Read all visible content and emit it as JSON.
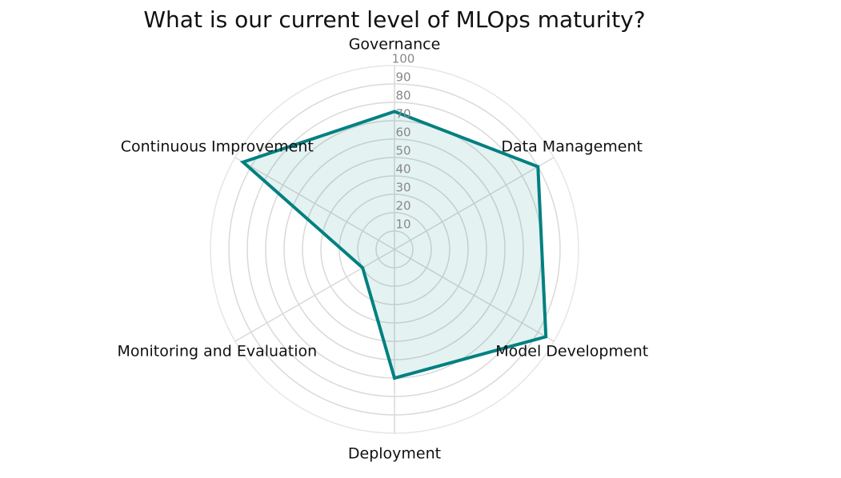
{
  "chart_data": {
    "type": "radar",
    "title": "What is our current level of MLOps maturity?",
    "categories": [
      "Governance",
      "Data Management",
      "Model Development",
      "Deployment",
      "Monitoring and Evaluation",
      "Continuous Improvement"
    ],
    "values": [
      75,
      90,
      95,
      70,
      20,
      95
    ],
    "color": "#008080",
    "rlim": [
      0,
      100
    ],
    "rticks": [
      10,
      20,
      30,
      40,
      50,
      60,
      70,
      80,
      90,
      100
    ],
    "grid": true
  }
}
